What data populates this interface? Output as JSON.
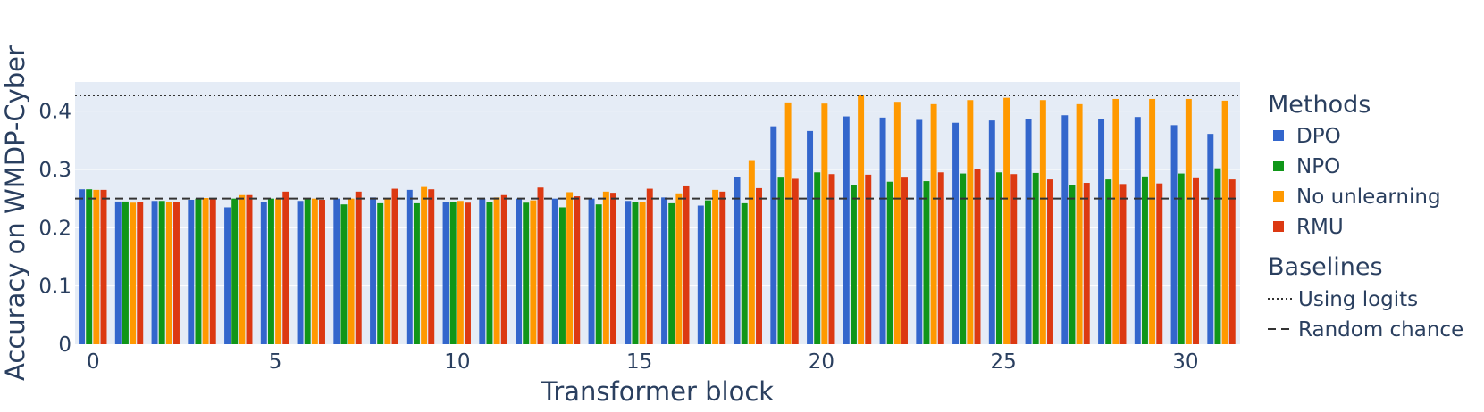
{
  "chart_data": {
    "type": "bar",
    "xlabel": "Transformer block",
    "ylabel": "Accuracy on WMDP-Cyber",
    "ylim": [
      0,
      0.45
    ],
    "xticks": [
      0,
      5,
      10,
      15,
      20,
      25,
      30
    ],
    "yticks": [
      0,
      0.1,
      0.2,
      0.3,
      0.4
    ],
    "ytick_labels": [
      "0",
      "0.1",
      "0.2",
      "0.3",
      "0.4"
    ],
    "grid": true,
    "legend_position": "right",
    "categories": [
      0,
      1,
      2,
      3,
      4,
      5,
      6,
      7,
      8,
      9,
      10,
      11,
      12,
      13,
      14,
      15,
      16,
      17,
      18,
      19,
      20,
      21,
      22,
      23,
      24,
      25,
      26,
      27,
      28,
      29,
      30,
      31
    ],
    "series_group_title": "Methods",
    "series": [
      {
        "name": "DPO",
        "color": "#3366cc",
        "values": [
          0.266,
          0.245,
          0.246,
          0.248,
          0.235,
          0.244,
          0.246,
          0.25,
          0.252,
          0.265,
          0.244,
          0.25,
          0.25,
          0.25,
          0.25,
          0.246,
          0.252,
          0.238,
          0.287,
          0.374,
          0.366,
          0.391,
          0.389,
          0.385,
          0.38,
          0.384,
          0.387,
          0.393,
          0.387,
          0.39,
          0.376,
          0.361
        ]
      },
      {
        "name": "NPO",
        "color": "#109618",
        "values": [
          0.266,
          0.245,
          0.246,
          0.25,
          0.25,
          0.25,
          0.25,
          0.24,
          0.242,
          0.242,
          0.244,
          0.244,
          0.243,
          0.235,
          0.24,
          0.244,
          0.242,
          0.247,
          0.242,
          0.286,
          0.295,
          0.273,
          0.279,
          0.28,
          0.293,
          0.295,
          0.294,
          0.273,
          0.283,
          0.288,
          0.293,
          0.302
        ]
      },
      {
        "name": "No unlearning",
        "color": "#ff9900",
        "values": [
          0.265,
          0.243,
          0.244,
          0.251,
          0.256,
          0.25,
          0.25,
          0.25,
          0.25,
          0.27,
          0.246,
          0.252,
          0.247,
          0.261,
          0.262,
          0.244,
          0.259,
          0.265,
          0.316,
          0.415,
          0.413,
          0.428,
          0.416,
          0.412,
          0.419,
          0.423,
          0.419,
          0.412,
          0.421,
          0.421,
          0.421,
          0.418
        ]
      },
      {
        "name": "RMU",
        "color": "#dc3912",
        "values": [
          0.265,
          0.244,
          0.244,
          0.25,
          0.256,
          0.262,
          0.248,
          0.262,
          0.267,
          0.266,
          0.243,
          0.256,
          0.269,
          0.254,
          0.26,
          0.267,
          0.271,
          0.262,
          0.268,
          0.284,
          0.292,
          0.291,
          0.286,
          0.295,
          0.3,
          0.292,
          0.283,
          0.277,
          0.275,
          0.276,
          0.285,
          0.283
        ]
      }
    ],
    "baselines_group_title": "Baselines",
    "baselines": [
      {
        "name": "Using logits",
        "value": 0.427,
        "dash": "dotted"
      },
      {
        "name": "Random chance",
        "value": 0.25,
        "dash": "dashed"
      }
    ]
  }
}
